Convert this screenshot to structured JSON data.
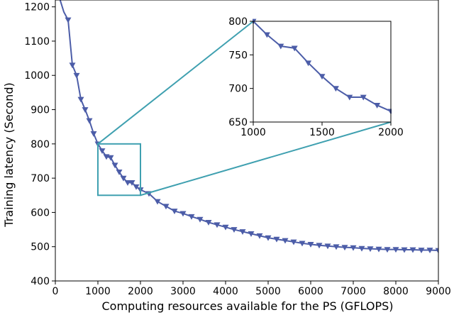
{
  "chart_data": {
    "type": "line",
    "xlabel": "Computing resources available for the PS (GFLOPS)",
    "ylabel": "Training latency (Second)",
    "xlim": [
      0,
      9000
    ],
    "ylim": [
      400,
      1220
    ],
    "x_ticks": [
      0,
      1000,
      2000,
      3000,
      4000,
      5000,
      6000,
      7000,
      8000,
      9000
    ],
    "y_ticks": [
      400,
      500,
      600,
      700,
      800,
      900,
      1000,
      1100,
      1200
    ],
    "grid": false,
    "line_color": "#4c5da8",
    "zoom_box_color": "#3fa0b0",
    "marker": "triangle-down",
    "series": [
      {
        "x": [
          100,
          200,
          300,
          400,
          500,
          600,
          700,
          800,
          900,
          1000,
          1100,
          1200,
          1300,
          1400,
          1500,
          1600,
          1700,
          1800,
          1900,
          2000,
          2200,
          2400,
          2600,
          2800,
          3000,
          3200,
          3400,
          3600,
          3800,
          4000,
          4200,
          4400,
          4600,
          4800,
          5000,
          5200,
          5400,
          5600,
          5800,
          6000,
          6200,
          6400,
          6600,
          6800,
          7000,
          7200,
          7400,
          7600,
          7800,
          8000,
          8200,
          8400,
          8600,
          8800,
          9000
        ],
        "y": [
          1225,
          1185,
          1162,
          1030,
          1000,
          930,
          900,
          868,
          830,
          800,
          780,
          763,
          760,
          738,
          718,
          700,
          687,
          687,
          675,
          666,
          655,
          632,
          618,
          604,
          597,
          588,
          580,
          571,
          564,
          557,
          550,
          544,
          538,
          532,
          526,
          522,
          518,
          514,
          510,
          507,
          504,
          502,
          500,
          498,
          497,
          495,
          494,
          493,
          492,
          492,
          491,
          491,
          490,
          490,
          489
        ]
      }
    ],
    "zoom_region": {
      "xlim": [
        1000,
        2000
      ],
      "ylim": [
        650,
        800
      ]
    },
    "inset": {
      "xlim": [
        1000,
        2000
      ],
      "ylim": [
        650,
        800
      ],
      "x_ticks": [
        1000,
        1500,
        2000
      ],
      "y_ticks": [
        650,
        700,
        750,
        800
      ],
      "x": [
        1000,
        1100,
        1200,
        1300,
        1400,
        1500,
        1600,
        1700,
        1800,
        1900,
        2000
      ],
      "y": [
        800,
        780,
        763,
        760,
        738,
        718,
        700,
        687,
        687,
        675,
        666
      ]
    }
  }
}
